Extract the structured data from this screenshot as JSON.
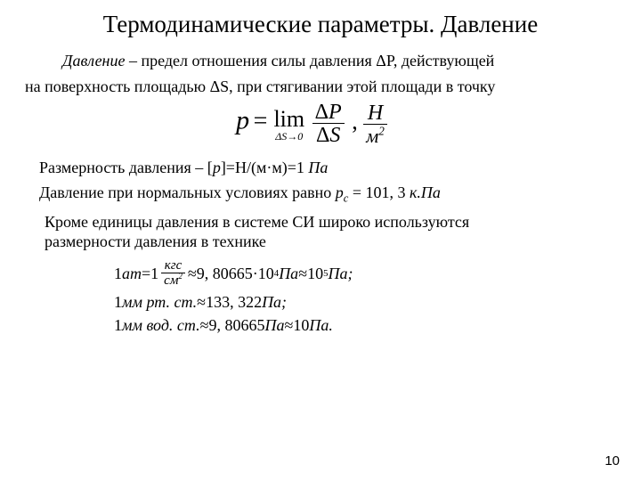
{
  "title": "Термодинамические параметры. Давление",
  "def_lead": "Давление",
  "def_sep": " – ",
  "def_rest1": "предел отношения силы давления  ΔP, действующей",
  "def_rest2": "на поверхность площадью ΔS, при стягивании этой площади в точку",
  "formula": {
    "lhs": "p",
    "eq": " = ",
    "lim": "lim",
    "limsub": "ΔS→0",
    "num": "ΔP",
    "den": "ΔS",
    "comma": " ,  ",
    "unit_num": "Н",
    "unit_den": "м",
    "unit_den_exp": "2",
    "mainfont": 28,
    "smallfont": 12,
    "color": "#000000"
  },
  "dim_line_a": "Размерность давления – [",
  "dim_line_b": "p",
  "dim_line_c": "]=Н/(м·м)=1 ",
  "dim_line_d": "Па",
  "normal_line_a": "Давление при нормальных условиях равно   ",
  "normal_eq": {
    "sym": "p",
    "sub": "c",
    "eq": " = ",
    "val": "101, 3",
    "unit": " к.Па"
  },
  "si_line1": "Кроме единицы давления в системе СИ широко используются",
  "si_line2": "размерности давления в технике",
  "units": {
    "at": {
      "lhs_a": "1 ",
      "lhs_b": "ат",
      "eq1": " = ",
      "one": "1",
      "frac_num": "кгс",
      "frac_den_a": "см",
      "frac_den_exp": "2",
      "approx": " ≈ ",
      "v1": "9, 80665",
      "dot": "·",
      "ten1": "10",
      "exp1": "4",
      "pa1": " Па",
      "approx2": " ≈ ",
      "ten2": "10",
      "exp2": "5",
      "pa2": " Па;"
    },
    "mmhg": {
      "lhs_a": "1 ",
      "lhs_b": "мм рт. ст.",
      "approx": " ≈ ",
      "val": "133, 322",
      "pa": " Па;"
    },
    "mmwc": {
      "lhs_a": "1 ",
      "lhs_b": "мм вод. ст.",
      "approx": " ≈ ",
      "val": "9, 80665",
      "pa1": " Па",
      "approx2": " ≈ ",
      "ten": "10",
      "pa2": " Па."
    }
  },
  "pagenum": "10",
  "bg": "#ffffff",
  "textcolor": "#000000"
}
